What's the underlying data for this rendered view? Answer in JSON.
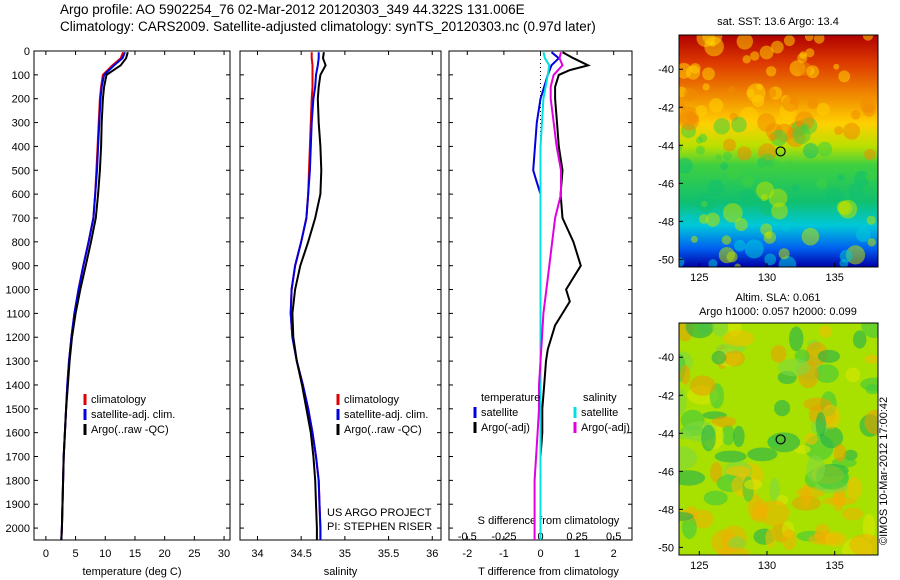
{
  "header": {
    "line1": "Argo profile: AO 5902254_76 02-Mar-2012 20120303_349 44.322S 131.006E",
    "line2": "Climatology: CARS2009. Satellite-adjusted climatology: synTS_20120303.nc (0.97d later)"
  },
  "vertical_label": "©IMOS 10-Mar-2012 17:00:42",
  "colors": {
    "red": "#e00000",
    "blue": "#0000e0",
    "black": "#000000",
    "cyan": "#00e0e0",
    "magenta": "#e000e0"
  },
  "chart_data": [
    {
      "type": "line",
      "panel": "temperature",
      "xlabel": "temperature (deg C)",
      "xlim": [
        -2,
        31
      ],
      "ylim": [
        0,
        2050
      ],
      "xticks": [
        0,
        5,
        10,
        15,
        20,
        25,
        30
      ],
      "yticks": [
        0,
        100,
        200,
        300,
        400,
        500,
        600,
        700,
        800,
        900,
        1000,
        1100,
        1200,
        1300,
        1400,
        1500,
        1600,
        1700,
        1800,
        1900,
        2000
      ],
      "legend": [
        "climatology",
        "satellite-adj. clim.",
        "Argo(..raw -QC)"
      ],
      "depth": [
        5,
        30,
        60,
        100,
        150,
        200,
        300,
        400,
        500,
        600,
        700,
        800,
        900,
        1000,
        1100,
        1200,
        1300,
        1400,
        1500,
        1600,
        1700,
        1800,
        1900,
        2000,
        2050
      ],
      "series": [
        {
          "name": "climatology",
          "color": "red",
          "values": [
            13.0,
            12.6,
            11.2,
            9.6,
            9.3,
            9.1,
            8.9,
            8.7,
            8.5,
            8.3,
            8.0,
            7.2,
            6.3,
            5.5,
            4.8,
            4.3,
            3.9,
            3.6,
            3.4,
            3.2,
            3.0,
            2.9,
            2.8,
            2.7,
            2.6
          ]
        },
        {
          "name": "satellite-adj. clim.",
          "color": "blue",
          "values": [
            13.3,
            12.9,
            11.5,
            9.8,
            9.4,
            9.2,
            9.0,
            8.8,
            8.6,
            8.3,
            8.0,
            7.2,
            6.3,
            5.5,
            4.8,
            4.3,
            3.9,
            3.6,
            3.4,
            3.2,
            3.0,
            2.9,
            2.8,
            2.7,
            2.6
          ]
        },
        {
          "name": "Argo(..raw -QC)",
          "color": "black",
          "values": [
            13.8,
            13.5,
            12.6,
            10.2,
            9.8,
            9.6,
            9.4,
            9.3,
            9.1,
            8.8,
            8.4,
            7.6,
            6.7,
            5.8,
            5.0,
            4.4,
            4.0,
            3.7,
            3.4,
            3.2,
            3.0,
            2.9,
            2.8,
            2.7,
            2.6
          ]
        }
      ]
    },
    {
      "type": "line",
      "panel": "salinity",
      "xlabel": "salinity",
      "xlim": [
        33.8,
        36.1
      ],
      "ylim": [
        0,
        2050
      ],
      "xticks": [
        34,
        34.5,
        35,
        35.5,
        36
      ],
      "legend": [
        "climatology",
        "satellite-adj. clim.",
        "Argo(..raw -QC)"
      ],
      "annotation": [
        "US ARGO PROJECT",
        "PI: STEPHEN RISER"
      ],
      "depth": [
        5,
        30,
        60,
        100,
        150,
        200,
        300,
        400,
        500,
        600,
        700,
        800,
        900,
        1000,
        1100,
        1200,
        1300,
        1400,
        1500,
        1600,
        1700,
        1800,
        1900,
        2000,
        2050
      ],
      "series": [
        {
          "name": "climatology",
          "color": "red",
          "values": [
            34.62,
            34.62,
            34.63,
            34.63,
            34.63,
            34.62,
            34.61,
            34.6,
            34.59,
            34.58,
            34.56,
            34.5,
            34.43,
            34.39,
            34.38,
            34.4,
            34.45,
            34.52,
            34.58,
            34.63,
            34.67,
            34.7,
            34.71,
            34.72,
            34.72
          ]
        },
        {
          "name": "satellite-adj. clim.",
          "color": "blue",
          "values": [
            34.7,
            34.7,
            34.69,
            34.67,
            34.66,
            34.64,
            34.62,
            34.61,
            34.6,
            34.58,
            34.56,
            34.5,
            34.43,
            34.39,
            34.38,
            34.4,
            34.45,
            34.52,
            34.58,
            34.63,
            34.67,
            34.7,
            34.71,
            34.72,
            34.72
          ]
        },
        {
          "name": "Argo(..raw -QC)",
          "color": "black",
          "values": [
            34.76,
            34.75,
            34.78,
            34.72,
            34.7,
            34.69,
            34.7,
            34.72,
            34.73,
            34.72,
            34.66,
            34.58,
            34.49,
            34.43,
            34.4,
            34.41,
            34.45,
            34.51,
            34.56,
            34.61,
            34.64,
            34.66,
            34.67,
            34.68,
            34.68
          ]
        }
      ]
    },
    {
      "type": "line",
      "panel": "difference",
      "xlabel": "T difference from climatology",
      "xlabel_top": "S difference from climatology",
      "xlim": [
        -2.5,
        2.5
      ],
      "ylim": [
        0,
        2050
      ],
      "xticks": [
        -2,
        -1,
        0,
        1,
        2
      ],
      "xticks_top": [
        "-0.5",
        "-0.25",
        "0",
        "0.25",
        "0.5"
      ],
      "legend_temperature": {
        "title": "temperature",
        "items": [
          "satellite",
          "Argo(-adj)"
        ]
      },
      "legend_salinity": {
        "title": "salinity",
        "items": [
          "satellite",
          "Argo(-adj)"
        ]
      },
      "series": [
        {
          "name": "temperature satellite",
          "color": "blue",
          "depth": [
            5,
            30,
            60,
            100,
            150,
            200,
            300,
            400,
            500,
            550,
            600,
            700,
            800,
            1000,
            1100,
            1200,
            2050
          ],
          "values": [
            0.3,
            0.5,
            0.3,
            0.2,
            0.1,
            0.0,
            -0.1,
            -0.15,
            -0.2,
            -0.1,
            0.0,
            0.0,
            0.0,
            0.0,
            0.0,
            0.0,
            0.0
          ]
        },
        {
          "name": "temperature Argo(-adj)",
          "color": "black",
          "depth": [
            5,
            30,
            60,
            80,
            100,
            150,
            200,
            300,
            400,
            500,
            600,
            700,
            800,
            900,
            950,
            1000,
            1050,
            1100,
            1150,
            1200,
            1250,
            1300,
            1400,
            1500,
            1600,
            1700,
            1800,
            1900,
            2000,
            2050
          ],
          "values": [
            0.6,
            0.9,
            1.3,
            0.8,
            0.5,
            0.4,
            0.4,
            0.45,
            0.5,
            0.6,
            0.55,
            0.6,
            0.9,
            1.1,
            0.9,
            0.7,
            0.8,
            0.6,
            0.4,
            0.3,
            0.2,
            0.15,
            0.1,
            0.05,
            0.05,
            0.0,
            0.0,
            0.0,
            0.0,
            0.0
          ]
        },
        {
          "name": "salinity satellite",
          "color": "cyan",
          "depth": [
            5,
            30,
            60,
            100,
            200,
            300,
            400,
            500,
            600,
            700,
            800,
            900,
            1000,
            2050
          ],
          "values": [
            0.02,
            0.03,
            0.06,
            0.05,
            0.02,
            0.01,
            0.0,
            0.0,
            0.0,
            0.0,
            0.0,
            0.0,
            0.0,
            0.0
          ]
        },
        {
          "name": "salinity Argo(-adj)",
          "color": "magenta",
          "depth": [
            5,
            30,
            60,
            100,
            150,
            200,
            300,
            400,
            500,
            600,
            700,
            800,
            900,
            1000,
            1100,
            1200,
            1300,
            1400,
            1500,
            1600,
            1700,
            1800,
            1900,
            2000,
            2050
          ],
          "values": [
            0.14,
            0.13,
            0.15,
            0.09,
            0.07,
            0.07,
            0.09,
            0.11,
            0.14,
            0.14,
            0.1,
            0.08,
            0.06,
            0.04,
            0.02,
            0.01,
            0.0,
            -0.01,
            -0.01,
            -0.02,
            -0.03,
            -0.04,
            -0.04,
            -0.04,
            -0.04
          ]
        }
      ]
    },
    {
      "type": "heatmap",
      "panel": "sst_map",
      "title": "sat. SST: 13.6 Argo: 13.4",
      "xlim": [
        123.5,
        138.2
      ],
      "ylim": [
        -50.4,
        -38.2
      ],
      "xticks": [
        125,
        130,
        135
      ],
      "yticks": [
        -40,
        -42,
        -44,
        -46,
        -48,
        -50
      ],
      "marker": {
        "lon": 131.006,
        "lat": -44.322
      }
    },
    {
      "type": "heatmap",
      "panel": "sla_map",
      "title_line1": "Altim. SLA: 0.061",
      "title_line2": "Argo h1000: 0.057 h2000: 0.099",
      "xlim": [
        123.5,
        138.2
      ],
      "ylim": [
        -50.4,
        -38.2
      ],
      "xticks": [
        125,
        130,
        135
      ],
      "yticks": [
        -40,
        -42,
        -44,
        -46,
        -48,
        -50
      ],
      "marker": {
        "lon": 131.006,
        "lat": -44.322
      }
    }
  ]
}
